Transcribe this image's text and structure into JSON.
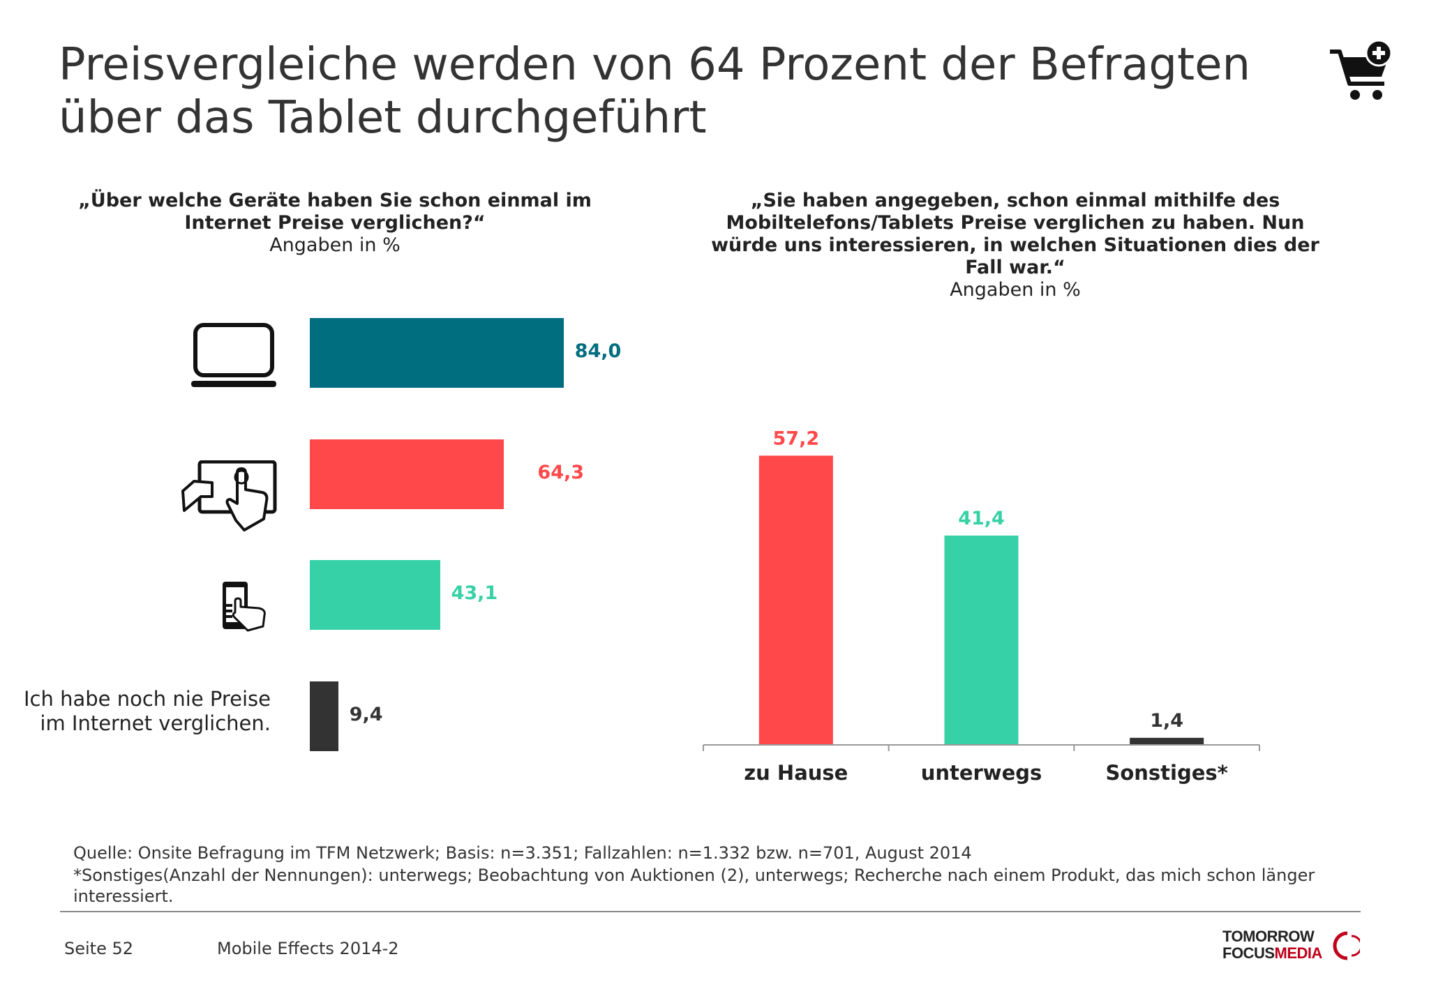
{
  "title": "Preisvergleiche werden von 64 Prozent der Befragten über das Tablet durchgeführt",
  "left_chart": {
    "question": "„Über welche Geräte haben Sie schon einmal im Internet Preise verglichen?“",
    "unit": "Angaben in %",
    "never_label": "Ich habe noch nie Preise im Internet verglichen."
  },
  "right_chart": {
    "question": "„Sie haben angegeben, schon einmal mithilfe des Mobiltelefons/Tablets Preise verglichen zu haben. Nun würde uns interessieren, in welchen Situationen dies der Fall war.“",
    "unit": "Angaben in %"
  },
  "chart_data": [
    {
      "type": "bar",
      "orientation": "horizontal",
      "categories": [
        "laptop-icon",
        "tablet-icon",
        "smartphone-icon",
        "Ich habe noch nie Preise im Internet verglichen."
      ],
      "values": [
        84.0,
        64.3,
        43.1,
        9.4
      ],
      "value_labels": [
        "84,0",
        "64,3",
        "43,1",
        "9,4"
      ],
      "colors": [
        "#006E7F",
        "#FF4849",
        "#36D1A6",
        "#333333"
      ],
      "xlim": [
        0,
        100
      ],
      "grid": false,
      "legend": "none"
    },
    {
      "type": "bar",
      "orientation": "vertical",
      "categories": [
        "zu Hause",
        "unterwegs",
        "Sonstiges*"
      ],
      "values": [
        57.2,
        41.4,
        1.4
      ],
      "value_labels": [
        "57,2",
        "41,4",
        "1,4"
      ],
      "colors": [
        "#FF4849",
        "#36D1A6",
        "#333333"
      ],
      "ylim": [
        0,
        60
      ],
      "grid": false,
      "legend": "none"
    }
  ],
  "footer": {
    "source": "Quelle: Onsite Befragung im TFM Netzwerk; Basis: n=3.351; Fallzahlen: n=1.332 bzw. n=701, August 2014",
    "note": "*Sonstiges(Anzahl der Nennungen): unterwegs; Beobachtung von Auktionen (2), unterwegs; Recherche nach einem Produkt, das mich schon länger interessiert.",
    "page": "Seite 52",
    "report": "Mobile Effects 2014-2",
    "brand_line1": "TOMORROW",
    "brand_line2a": "FOCUS",
    "brand_line2b": "MEDIA"
  },
  "icons": {
    "header": "cart-add-icon",
    "devices": [
      "laptop-icon",
      "tablet-icon",
      "smartphone-icon"
    ]
  }
}
